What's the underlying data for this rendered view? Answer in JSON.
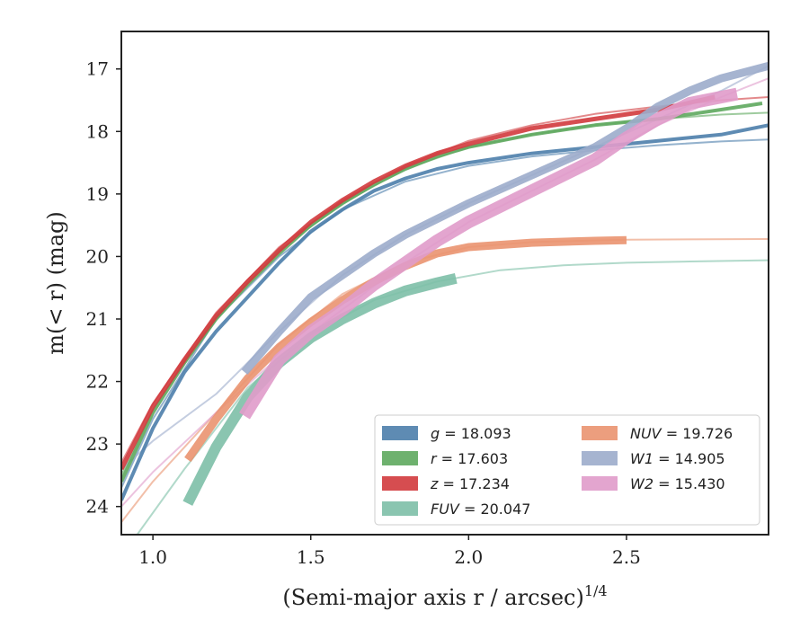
{
  "chart_data": {
    "type": "line",
    "xlabel": "(Semi-major axis r / arcsec)",
    "xlabel_sup": "1/4",
    "ylabel": "m(< r) (mag)",
    "xlim": [
      0.9,
      2.95
    ],
    "ylim": [
      24.45,
      16.4
    ],
    "y_inverted": true,
    "grid": false,
    "legend_position": "lower-right",
    "xticks": [
      1.0,
      1.5,
      2.0,
      2.5
    ],
    "xtick_labels": [
      "1.0",
      "1.5",
      "2.0",
      "2.5"
    ],
    "yticks": [
      17,
      18,
      19,
      20,
      21,
      22,
      23,
      24
    ],
    "ytick_labels": [
      "17",
      "18",
      "19",
      "20",
      "21",
      "22",
      "23",
      "24"
    ],
    "series": [
      {
        "name": "g = 18.093",
        "band": "g",
        "value": "18.093",
        "color": "#4c7eab",
        "data": [
          [
            0.9,
            23.9
          ],
          [
            1.0,
            22.75
          ],
          [
            1.1,
            21.85
          ],
          [
            1.2,
            21.2
          ],
          [
            1.3,
            20.65
          ],
          [
            1.4,
            20.1
          ],
          [
            1.5,
            19.6
          ],
          [
            1.6,
            19.25
          ],
          [
            1.7,
            18.95
          ],
          [
            1.8,
            18.75
          ],
          [
            1.9,
            18.6
          ],
          [
            2.0,
            18.5
          ],
          [
            2.2,
            18.35
          ],
          [
            2.4,
            18.25
          ],
          [
            2.6,
            18.15
          ],
          [
            2.8,
            18.05
          ],
          [
            2.95,
            17.9
          ]
        ],
        "model": [
          [
            0.9,
            23.7
          ],
          [
            1.0,
            22.6
          ],
          [
            1.2,
            21.0
          ],
          [
            1.4,
            20.0
          ],
          [
            1.6,
            19.25
          ],
          [
            1.8,
            18.8
          ],
          [
            2.0,
            18.55
          ],
          [
            2.2,
            18.4
          ],
          [
            2.4,
            18.3
          ],
          [
            2.6,
            18.22
          ],
          [
            2.8,
            18.16
          ],
          [
            2.95,
            18.13
          ]
        ],
        "band_width": 4
      },
      {
        "name": "r = 17.603",
        "band": "r",
        "value": "17.603",
        "color": "#5ea85e",
        "data": [
          [
            0.9,
            23.6
          ],
          [
            1.0,
            22.5
          ],
          [
            1.1,
            21.7
          ],
          [
            1.2,
            21.0
          ],
          [
            1.3,
            20.45
          ],
          [
            1.4,
            19.95
          ],
          [
            1.5,
            19.5
          ],
          [
            1.6,
            19.15
          ],
          [
            1.7,
            18.85
          ],
          [
            1.8,
            18.6
          ],
          [
            1.9,
            18.4
          ],
          [
            2.0,
            18.25
          ],
          [
            2.2,
            18.05
          ],
          [
            2.4,
            17.9
          ],
          [
            2.6,
            17.8
          ],
          [
            2.8,
            17.65
          ],
          [
            2.93,
            17.55
          ]
        ],
        "model": [
          [
            0.9,
            23.5
          ],
          [
            1.0,
            22.45
          ],
          [
            1.2,
            20.95
          ],
          [
            1.4,
            19.9
          ],
          [
            1.6,
            19.15
          ],
          [
            1.8,
            18.6
          ],
          [
            2.0,
            18.25
          ],
          [
            2.2,
            18.05
          ],
          [
            2.4,
            17.9
          ],
          [
            2.6,
            17.8
          ],
          [
            2.8,
            17.73
          ],
          [
            2.95,
            17.7
          ]
        ],
        "band_width": 4
      },
      {
        "name": "z = 17.234",
        "band": "z",
        "value": "17.234",
        "color": "#d13a3d",
        "data": [
          [
            0.9,
            23.4
          ],
          [
            1.0,
            22.4
          ],
          [
            1.1,
            21.65
          ],
          [
            1.2,
            20.95
          ],
          [
            1.3,
            20.4
          ],
          [
            1.4,
            19.9
          ],
          [
            1.5,
            19.45
          ],
          [
            1.6,
            19.1
          ],
          [
            1.7,
            18.8
          ],
          [
            1.8,
            18.55
          ],
          [
            1.9,
            18.35
          ],
          [
            2.0,
            18.2
          ],
          [
            2.2,
            17.95
          ],
          [
            2.4,
            17.8
          ],
          [
            2.6,
            17.65
          ],
          [
            2.78,
            17.45
          ]
        ],
        "model": [
          [
            0.9,
            23.3
          ],
          [
            1.0,
            22.35
          ],
          [
            1.2,
            20.9
          ],
          [
            1.4,
            19.85
          ],
          [
            1.6,
            19.1
          ],
          [
            1.8,
            18.55
          ],
          [
            2.0,
            18.15
          ],
          [
            2.2,
            17.9
          ],
          [
            2.4,
            17.72
          ],
          [
            2.6,
            17.6
          ],
          [
            2.8,
            17.5
          ],
          [
            2.95,
            17.45
          ]
        ],
        "band_width": 5
      },
      {
        "name": "FUV = 20.047",
        "band": "FUV",
        "value": "20.047",
        "color": "#7dbfa7",
        "data": [
          [
            1.11,
            23.95
          ],
          [
            1.2,
            23.05
          ],
          [
            1.3,
            22.25
          ],
          [
            1.4,
            21.7
          ],
          [
            1.5,
            21.3
          ],
          [
            1.6,
            21.0
          ],
          [
            1.7,
            20.75
          ],
          [
            1.8,
            20.55
          ],
          [
            1.9,
            20.42
          ],
          [
            1.96,
            20.35
          ]
        ],
        "model": [
          [
            0.95,
            24.45
          ],
          [
            1.1,
            23.4
          ],
          [
            1.3,
            22.1
          ],
          [
            1.5,
            21.25
          ],
          [
            1.7,
            20.7
          ],
          [
            1.9,
            20.4
          ],
          [
            2.1,
            20.22
          ],
          [
            2.3,
            20.14
          ],
          [
            2.5,
            20.1
          ],
          [
            2.7,
            20.08
          ],
          [
            2.95,
            20.06
          ]
        ],
        "band_width": 12
      },
      {
        "name": "NUV = 19.726",
        "band": "NUV",
        "value": "19.726",
        "color": "#ea9470",
        "data": [
          [
            1.11,
            23.25
          ],
          [
            1.2,
            22.6
          ],
          [
            1.3,
            21.95
          ],
          [
            1.4,
            21.45
          ],
          [
            1.5,
            21.05
          ],
          [
            1.6,
            20.7
          ],
          [
            1.7,
            20.4
          ],
          [
            1.8,
            20.15
          ],
          [
            1.9,
            19.95
          ],
          [
            2.0,
            19.85
          ],
          [
            2.2,
            19.78
          ],
          [
            2.4,
            19.75
          ],
          [
            2.5,
            19.74
          ]
        ],
        "model": [
          [
            0.9,
            24.25
          ],
          [
            1.0,
            23.6
          ],
          [
            1.2,
            22.5
          ],
          [
            1.4,
            21.4
          ],
          [
            1.6,
            20.6
          ],
          [
            1.8,
            20.1
          ],
          [
            2.0,
            19.85
          ],
          [
            2.2,
            19.77
          ],
          [
            2.5,
            19.73
          ],
          [
            2.95,
            19.72
          ]
        ],
        "band_width": 9
      },
      {
        "name": "W1 = 14.905",
        "band": "W1",
        "value": "14.905",
        "color": "#9caccb",
        "data": [
          [
            1.29,
            21.85
          ],
          [
            1.4,
            21.2
          ],
          [
            1.5,
            20.65
          ],
          [
            1.6,
            20.3
          ],
          [
            1.7,
            19.95
          ],
          [
            1.8,
            19.65
          ],
          [
            1.9,
            19.4
          ],
          [
            2.0,
            19.15
          ],
          [
            2.2,
            18.7
          ],
          [
            2.4,
            18.25
          ],
          [
            2.5,
            17.95
          ],
          [
            2.6,
            17.6
          ],
          [
            2.7,
            17.35
          ],
          [
            2.8,
            17.15
          ],
          [
            2.95,
            16.95
          ]
        ],
        "model": [
          [
            0.9,
            23.4
          ],
          [
            1.0,
            22.95
          ],
          [
            1.2,
            22.2
          ],
          [
            1.4,
            21.2
          ],
          [
            1.6,
            20.3
          ],
          [
            1.8,
            19.65
          ],
          [
            2.0,
            19.15
          ],
          [
            2.2,
            18.7
          ],
          [
            2.4,
            18.25
          ],
          [
            2.6,
            17.8
          ],
          [
            2.8,
            17.35
          ],
          [
            2.95,
            16.95
          ]
        ],
        "band_width": 9
      },
      {
        "name": "W2 = 15.430",
        "band": "W2",
        "value": "15.430",
        "color": "#e09bca",
        "data": [
          [
            1.29,
            22.55
          ],
          [
            1.4,
            21.65
          ],
          [
            1.5,
            21.2
          ],
          [
            1.6,
            20.85
          ],
          [
            1.7,
            20.45
          ],
          [
            1.8,
            20.1
          ],
          [
            1.9,
            19.75
          ],
          [
            2.0,
            19.45
          ],
          [
            2.2,
            18.95
          ],
          [
            2.4,
            18.45
          ],
          [
            2.5,
            18.1
          ],
          [
            2.6,
            17.8
          ],
          [
            2.7,
            17.55
          ],
          [
            2.85,
            17.4
          ]
        ],
        "model": [
          [
            0.9,
            24.0
          ],
          [
            1.0,
            23.45
          ],
          [
            1.2,
            22.5
          ],
          [
            1.4,
            21.6
          ],
          [
            1.6,
            20.85
          ],
          [
            1.8,
            20.1
          ],
          [
            2.0,
            19.45
          ],
          [
            2.2,
            18.95
          ],
          [
            2.4,
            18.45
          ],
          [
            2.6,
            17.9
          ],
          [
            2.8,
            17.45
          ],
          [
            2.95,
            17.15
          ]
        ],
        "band_width": 14
      }
    ],
    "legend": [
      {
        "band": "g",
        "value": "18.093"
      },
      {
        "band": "r",
        "value": "17.603"
      },
      {
        "band": "z",
        "value": "17.234"
      },
      {
        "band": "FUV",
        "value": "20.047"
      },
      {
        "band": "NUV",
        "value": "19.726"
      },
      {
        "band": "W1",
        "value": "14.905"
      },
      {
        "band": "W2",
        "value": "15.430"
      }
    ]
  }
}
